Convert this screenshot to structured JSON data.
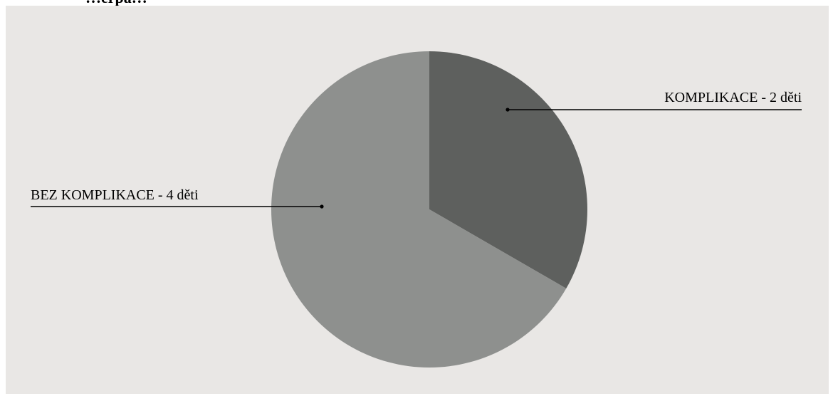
{
  "page": {
    "heading_fragment": "…ěrpa…"
  },
  "colors": {
    "background": "#e9e7e5",
    "slice_komplikace": "#5e605e",
    "slice_bez": "#8e908e",
    "leader": "#000000"
  },
  "chart_data": {
    "type": "pie",
    "title": "",
    "slices": [
      {
        "label": "KOMPLIKACE - 2 děti",
        "value": 2,
        "color": "#5e605e"
      },
      {
        "label": "BEZ KOMPLIKACE - 4 děti",
        "value": 4,
        "color": "#8e908e"
      }
    ],
    "start_angle_deg": 0,
    "direction": "clockwise",
    "legend": "none",
    "labels": "outside-with-leader-lines"
  }
}
